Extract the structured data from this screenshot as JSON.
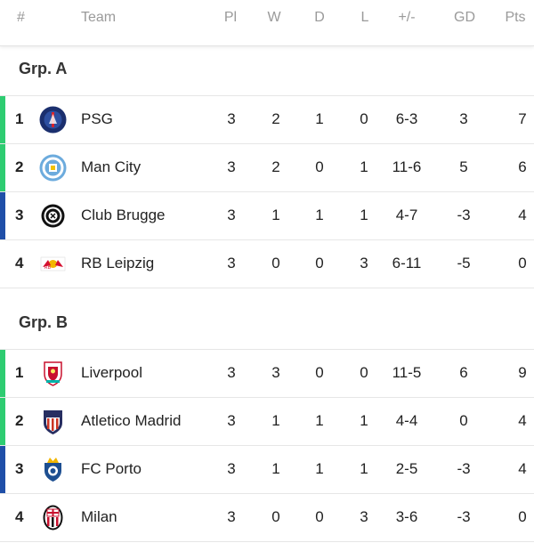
{
  "colors": {
    "ucl": "#2ecc71",
    "europa": "#1f4fa8"
  },
  "header": {
    "pos": "#",
    "team": "Team",
    "pl": "Pl",
    "w": "W",
    "d": "D",
    "l": "L",
    "goals": "+/-",
    "gd": "GD",
    "pts": "Pts"
  },
  "groups": [
    {
      "title": "Grp. A",
      "rows": [
        {
          "pos": "1",
          "team": "PSG",
          "pl": "3",
          "w": "2",
          "d": "1",
          "l": "0",
          "goals": "6-3",
          "gd": "3",
          "pts": "7",
          "crest": "psg-crest-icon"
        },
        {
          "pos": "2",
          "team": "Man City",
          "pl": "3",
          "w": "2",
          "d": "0",
          "l": "1",
          "goals": "11-6",
          "gd": "5",
          "pts": "6",
          "crest": "man-city-crest-icon"
        },
        {
          "pos": "3",
          "team": "Club Brugge",
          "pl": "3",
          "w": "1",
          "d": "1",
          "l": "1",
          "goals": "4-7",
          "gd": "-3",
          "pts": "4",
          "crest": "club-brugge-crest-icon"
        },
        {
          "pos": "4",
          "team": "RB Leipzig",
          "pl": "3",
          "w": "0",
          "d": "0",
          "l": "3",
          "goals": "6-11",
          "gd": "-5",
          "pts": "0",
          "crest": "rb-leipzig-crest-icon"
        }
      ]
    },
    {
      "title": "Grp. B",
      "rows": [
        {
          "pos": "1",
          "team": "Liverpool",
          "pl": "3",
          "w": "3",
          "d": "0",
          "l": "0",
          "goals": "11-5",
          "gd": "6",
          "pts": "9",
          "crest": "liverpool-crest-icon"
        },
        {
          "pos": "2",
          "team": "Atletico Madrid",
          "pl": "3",
          "w": "1",
          "d": "1",
          "l": "1",
          "goals": "4-4",
          "gd": "0",
          "pts": "4",
          "crest": "atletico-madrid-crest-icon"
        },
        {
          "pos": "3",
          "team": "FC Porto",
          "pl": "3",
          "w": "1",
          "d": "1",
          "l": "1",
          "goals": "2-5",
          "gd": "-3",
          "pts": "4",
          "crest": "fc-porto-crest-icon"
        },
        {
          "pos": "4",
          "team": "Milan",
          "pl": "3",
          "w": "0",
          "d": "0",
          "l": "3",
          "goals": "3-6",
          "gd": "-3",
          "pts": "0",
          "crest": "milan-crest-icon"
        }
      ]
    }
  ]
}
